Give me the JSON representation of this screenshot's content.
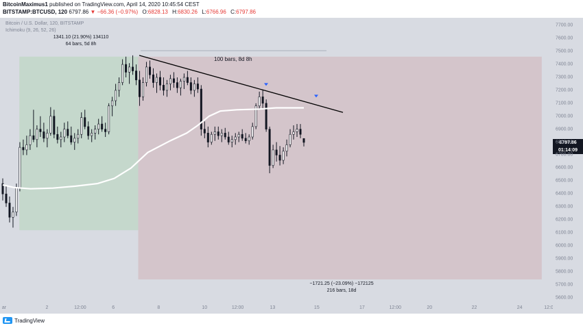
{
  "header": {
    "author": "BitcoinMaximus1",
    "published": "published on TradingView.com, April 14, 2020 10:45:54 CEST",
    "symbol": "BITSTAMP:BTCUSD, 120",
    "last": "6797.86",
    "change": "▼ −66.36 (−0.97%)",
    "o_label": "O:",
    "o_value": "6828.13",
    "h_label": "H:",
    "h_value": "6830.26",
    "l_label": "L:",
    "l_value": "6766.96",
    "c_label": "C:",
    "c_value": "6797.86"
  },
  "legend": {
    "line1": "Bitcoin / U.S. Dollar, 120, BITSTAMP",
    "line2": "Ichimoku (9, 26, 52, 26)"
  },
  "footer": {
    "brand": "TradingView"
  },
  "price_label": {
    "price": "6797.86",
    "countdown": "01:14:09"
  },
  "annotations": {
    "long_stats": "1341.10 (21.90%) 134110",
    "long_bars": "64 bars, 5d 8h",
    "range_bars": "100 bars, 8d 8h",
    "short_stats": "−1721.25 (−23.09%) −172125",
    "short_bars": "216 bars, 18d"
  },
  "colors": {
    "background": "#d8dbe2",
    "green_zone": "#c5d8cc",
    "red_zone": "#d4c5cb",
    "candle": "#131722",
    "ma_line": "#ffffff",
    "trendline": "#000000",
    "arrow": "#2962ff"
  },
  "chart_data": {
    "type": "candlestick",
    "y_ticks": [
      "7700.00",
      "7600.00",
      "7500.00",
      "7400.00",
      "7300.00",
      "7200.00",
      "7100.00",
      "7000.00",
      "6900.00",
      "6800.00",
      "6700.00",
      "6600.00",
      "6500.00",
      "6400.00",
      "6300.00",
      "6200.00",
      "6100.00",
      "6000.00",
      "5900.00",
      "5800.00",
      "5700.00",
      "5600.00"
    ],
    "ylim": [
      5550,
      7760
    ],
    "x_ticks": [
      {
        "label": "ar",
        "pos": 0.0
      },
      {
        "label": "2",
        "pos": 0.085
      },
      {
        "label": "12:00",
        "pos": 0.145
      },
      {
        "label": "6",
        "pos": 0.205
      },
      {
        "label": "8",
        "pos": 0.287
      },
      {
        "label": "10",
        "pos": 0.37
      },
      {
        "label": "12:00",
        "pos": 0.43
      },
      {
        "label": "13",
        "pos": 0.493
      },
      {
        "label": "15",
        "pos": 0.573
      },
      {
        "label": "17",
        "pos": 0.655
      },
      {
        "label": "12:00",
        "pos": 0.715
      },
      {
        "label": "20",
        "pos": 0.777
      },
      {
        "label": "22",
        "pos": 0.858
      },
      {
        "label": "24",
        "pos": 0.94
      },
      {
        "label": "12:0",
        "pos": 1.0
      }
    ],
    "candles": [
      {
        "o": 6480,
        "h": 6520,
        "l": 6350,
        "c": 6400
      },
      {
        "o": 6400,
        "h": 6460,
        "l": 6300,
        "c": 6330
      },
      {
        "o": 6330,
        "h": 6380,
        "l": 6180,
        "c": 6220
      },
      {
        "o": 6220,
        "h": 6300,
        "l": 6140,
        "c": 6260
      },
      {
        "o": 6260,
        "h": 6480,
        "l": 6230,
        "c": 6450
      },
      {
        "o": 6450,
        "h": 6800,
        "l": 6420,
        "c": 6760
      },
      {
        "o": 6760,
        "h": 6820,
        "l": 6700,
        "c": 6740
      },
      {
        "o": 6740,
        "h": 6850,
        "l": 6700,
        "c": 6780
      },
      {
        "o": 6780,
        "h": 6900,
        "l": 6740,
        "c": 6850
      },
      {
        "o": 6850,
        "h": 7050,
        "l": 6800,
        "c": 6820
      },
      {
        "o": 6820,
        "h": 6930,
        "l": 6760,
        "c": 6900
      },
      {
        "o": 6900,
        "h": 7000,
        "l": 6840,
        "c": 6880
      },
      {
        "o": 6880,
        "h": 6950,
        "l": 6800,
        "c": 6830
      },
      {
        "o": 6830,
        "h": 6900,
        "l": 6760,
        "c": 6870
      },
      {
        "o": 6870,
        "h": 7070,
        "l": 6850,
        "c": 7000
      },
      {
        "o": 7000,
        "h": 7050,
        "l": 6830,
        "c": 6860
      },
      {
        "o": 6860,
        "h": 6920,
        "l": 6790,
        "c": 6820
      },
      {
        "o": 6820,
        "h": 6880,
        "l": 6760,
        "c": 6840
      },
      {
        "o": 6840,
        "h": 6950,
        "l": 6800,
        "c": 6900
      },
      {
        "o": 6900,
        "h": 6960,
        "l": 6830,
        "c": 6850
      },
      {
        "o": 6850,
        "h": 6920,
        "l": 6780,
        "c": 6800
      },
      {
        "o": 6800,
        "h": 6870,
        "l": 6740,
        "c": 6830
      },
      {
        "o": 6830,
        "h": 6900,
        "l": 6790,
        "c": 6860
      },
      {
        "o": 6860,
        "h": 7030,
        "l": 6830,
        "c": 6990
      },
      {
        "o": 6990,
        "h": 7050,
        "l": 6900,
        "c": 6920
      },
      {
        "o": 6920,
        "h": 6960,
        "l": 6820,
        "c": 6850
      },
      {
        "o": 6850,
        "h": 6900,
        "l": 6800,
        "c": 6870
      },
      {
        "o": 6870,
        "h": 6930,
        "l": 6820,
        "c": 6900
      },
      {
        "o": 6900,
        "h": 6980,
        "l": 6860,
        "c": 6940
      },
      {
        "o": 6940,
        "h": 7000,
        "l": 6880,
        "c": 6900
      },
      {
        "o": 6900,
        "h": 6950,
        "l": 6840,
        "c": 6880
      },
      {
        "o": 6880,
        "h": 7100,
        "l": 6860,
        "c": 7080
      },
      {
        "o": 7080,
        "h": 7150,
        "l": 7000,
        "c": 7120
      },
      {
        "o": 7120,
        "h": 7250,
        "l": 7080,
        "c": 7200
      },
      {
        "o": 7200,
        "h": 7300,
        "l": 7150,
        "c": 7260
      },
      {
        "o": 7260,
        "h": 7440,
        "l": 7240,
        "c": 7400
      },
      {
        "o": 7400,
        "h": 7460,
        "l": 7300,
        "c": 7340
      },
      {
        "o": 7340,
        "h": 7410,
        "l": 7250,
        "c": 7380
      },
      {
        "o": 7380,
        "h": 7470,
        "l": 7320,
        "c": 7350
      },
      {
        "o": 7350,
        "h": 7400,
        "l": 7240,
        "c": 7280
      },
      {
        "o": 7280,
        "h": 7350,
        "l": 7080,
        "c": 7150
      },
      {
        "o": 7150,
        "h": 7300,
        "l": 7120,
        "c": 7260
      },
      {
        "o": 7260,
        "h": 7420,
        "l": 7230,
        "c": 7380
      },
      {
        "o": 7380,
        "h": 7430,
        "l": 7290,
        "c": 7320
      },
      {
        "o": 7320,
        "h": 7370,
        "l": 7220,
        "c": 7260
      },
      {
        "o": 7260,
        "h": 7330,
        "l": 7180,
        "c": 7300
      },
      {
        "o": 7300,
        "h": 7350,
        "l": 7200,
        "c": 7240
      },
      {
        "o": 7240,
        "h": 7300,
        "l": 7160,
        "c": 7200
      },
      {
        "o": 7200,
        "h": 7280,
        "l": 7150,
        "c": 7250
      },
      {
        "o": 7250,
        "h": 7320,
        "l": 7200,
        "c": 7290
      },
      {
        "o": 7290,
        "h": 7340,
        "l": 7220,
        "c": 7260
      },
      {
        "o": 7260,
        "h": 7300,
        "l": 7180,
        "c": 7220
      },
      {
        "o": 7220,
        "h": 7290,
        "l": 7160,
        "c": 7270
      },
      {
        "o": 7270,
        "h": 7330,
        "l": 7210,
        "c": 7300
      },
      {
        "o": 7300,
        "h": 7350,
        "l": 7240,
        "c": 7260
      },
      {
        "o": 7260,
        "h": 7300,
        "l": 7170,
        "c": 7200
      },
      {
        "o": 7200,
        "h": 7280,
        "l": 7150,
        "c": 7250
      },
      {
        "o": 7250,
        "h": 7300,
        "l": 7180,
        "c": 7210
      },
      {
        "o": 7210,
        "h": 7240,
        "l": 6850,
        "c": 6900
      },
      {
        "o": 6900,
        "h": 6960,
        "l": 6830,
        "c": 6870
      },
      {
        "o": 6870,
        "h": 6920,
        "l": 6760,
        "c": 6800
      },
      {
        "o": 6800,
        "h": 6880,
        "l": 6780,
        "c": 6860
      },
      {
        "o": 6860,
        "h": 6920,
        "l": 6810,
        "c": 6880
      },
      {
        "o": 6880,
        "h": 6920,
        "l": 6820,
        "c": 6850
      },
      {
        "o": 6850,
        "h": 6900,
        "l": 6800,
        "c": 6870
      },
      {
        "o": 6870,
        "h": 6910,
        "l": 6820,
        "c": 6840
      },
      {
        "o": 6840,
        "h": 6880,
        "l": 6780,
        "c": 6800
      },
      {
        "o": 6800,
        "h": 6850,
        "l": 6760,
        "c": 6820
      },
      {
        "o": 6820,
        "h": 6870,
        "l": 6780,
        "c": 6840
      },
      {
        "o": 6840,
        "h": 6880,
        "l": 6800,
        "c": 6860
      },
      {
        "o": 6860,
        "h": 6900,
        "l": 6810,
        "c": 6830
      },
      {
        "o": 6830,
        "h": 6870,
        "l": 6790,
        "c": 6810
      },
      {
        "o": 6810,
        "h": 6860,
        "l": 6780,
        "c": 6840
      },
      {
        "o": 6840,
        "h": 6950,
        "l": 6820,
        "c": 6920
      },
      {
        "o": 6920,
        "h": 7100,
        "l": 6900,
        "c": 7080
      },
      {
        "o": 7080,
        "h": 7190,
        "l": 7050,
        "c": 7150
      },
      {
        "o": 7150,
        "h": 7200,
        "l": 7060,
        "c": 7100
      },
      {
        "o": 7100,
        "h": 7130,
        "l": 6880,
        "c": 6900
      },
      {
        "o": 6900,
        "h": 6920,
        "l": 6560,
        "c": 6620
      },
      {
        "o": 6620,
        "h": 6780,
        "l": 6600,
        "c": 6740
      },
      {
        "o": 6740,
        "h": 6800,
        "l": 6650,
        "c": 6700
      },
      {
        "o": 6700,
        "h": 6770,
        "l": 6620,
        "c": 6660
      },
      {
        "o": 6660,
        "h": 6760,
        "l": 6630,
        "c": 6730
      },
      {
        "o": 6730,
        "h": 6820,
        "l": 6690,
        "c": 6780
      },
      {
        "o": 6780,
        "h": 6900,
        "l": 6760,
        "c": 6860
      },
      {
        "o": 6860,
        "h": 6930,
        "l": 6820,
        "c": 6880
      },
      {
        "o": 6880,
        "h": 6940,
        "l": 6840,
        "c": 6900
      },
      {
        "o": 6900,
        "h": 6940,
        "l": 6830,
        "c": 6860
      },
      {
        "o": 6828,
        "h": 6830,
        "l": 6767,
        "c": 6798
      }
    ],
    "ma_line": [
      [
        0.0,
        6470
      ],
      [
        0.02,
        6450
      ],
      [
        0.05,
        6440
      ],
      [
        0.09,
        6445
      ],
      [
        0.13,
        6460
      ],
      [
        0.17,
        6480
      ],
      [
        0.2,
        6520
      ],
      [
        0.23,
        6600
      ],
      [
        0.26,
        6720
      ],
      [
        0.3,
        6810
      ],
      [
        0.33,
        6870
      ],
      [
        0.35,
        6930
      ],
      [
        0.37,
        7000
      ],
      [
        0.39,
        7040
      ],
      [
        0.42,
        7050
      ],
      [
        0.46,
        7055
      ],
      [
        0.49,
        7065
      ],
      [
        0.51,
        7065
      ],
      [
        0.54,
        7065
      ]
    ],
    "trendline": [
      [
        0.0,
        7480
      ],
      [
        0.37,
        7030
      ]
    ],
    "zones": {
      "green": {
        "x0": 0.035,
        "x1": 0.25,
        "y0": 7460,
        "y1": 6120
      },
      "red": {
        "x0": 0.25,
        "x1": 0.98,
        "y0": 7460,
        "y1": 5740
      }
    },
    "arrows": [
      [
        0.48,
        7240
      ],
      [
        0.57,
        7150
      ]
    ]
  }
}
